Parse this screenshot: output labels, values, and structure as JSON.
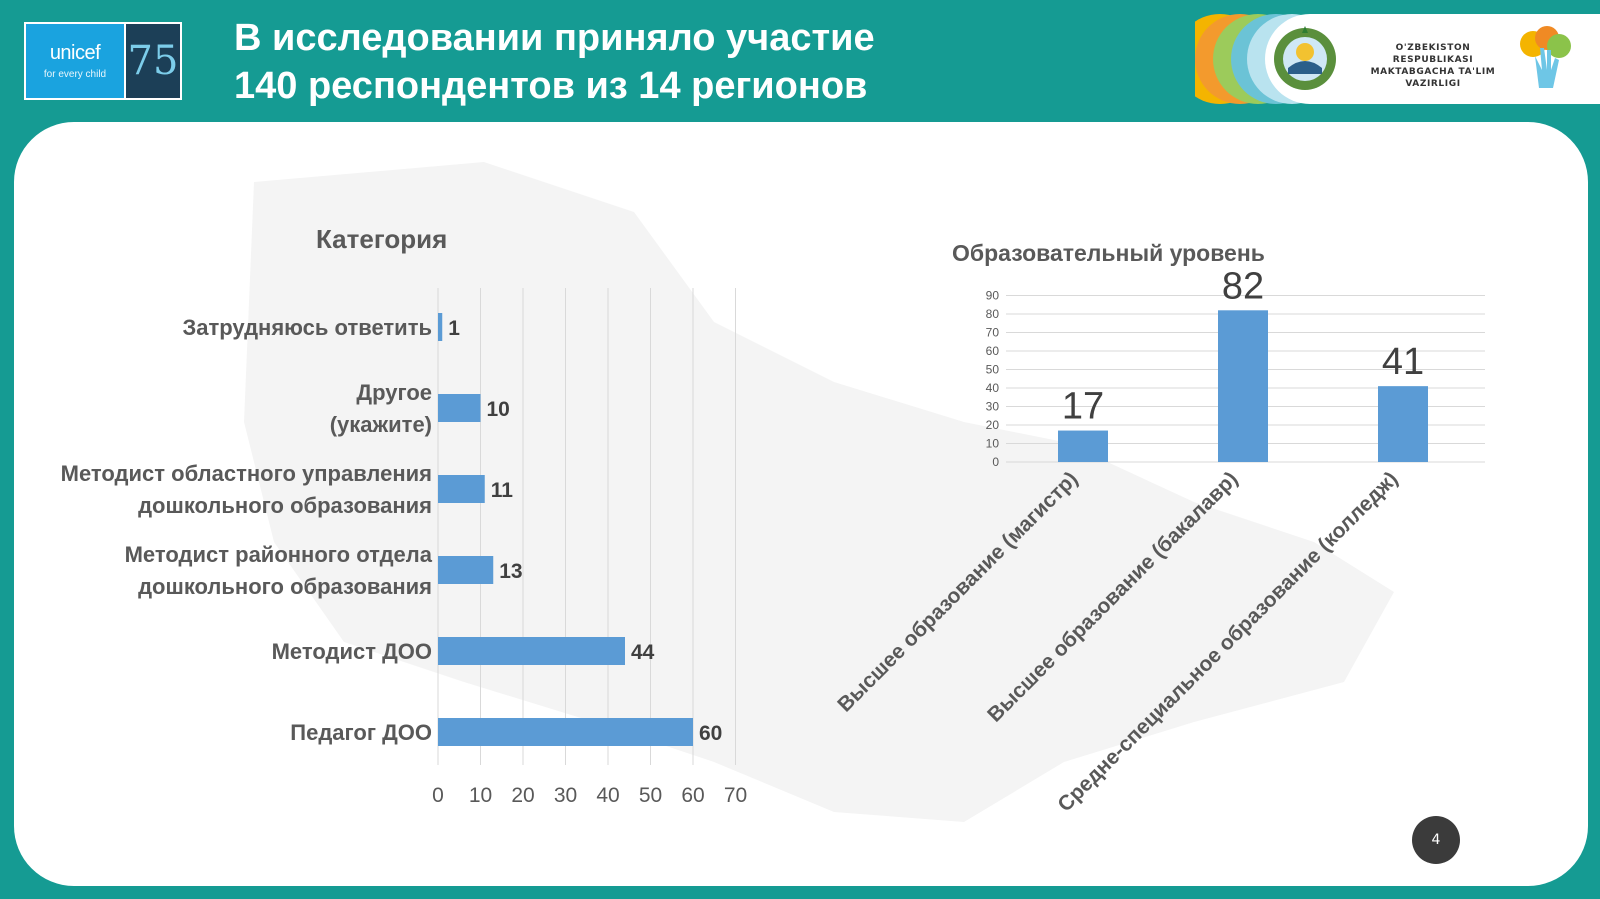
{
  "header": {
    "title_line1": "В исследовании приняло участие",
    "title_line2": "140 респондентов из 14 регионов",
    "unicef_name": "unicef",
    "unicef_tagline": "for every child",
    "unicef_anniversary": "75",
    "ministry_line1": "O'ZBEKISTON RESPUBLIKASI",
    "ministry_line2": "MAKTABGACHA TA'LIM",
    "ministry_line3": "VAZIRLIGI"
  },
  "colors": {
    "background": "#159b93",
    "bar": "#5b9bd5",
    "unicef_blue": "#1aa3df",
    "text_dark": "#595959"
  },
  "page_number": "4",
  "chart_data": [
    {
      "type": "bar",
      "orientation": "horizontal",
      "title": "Категория",
      "categories": [
        "Затрудняюсь ответить",
        "Другое (укажите)",
        "Методист областного управления дошкольного образования",
        "Методист районного отдела дошкольного образования",
        "Методист ДОО",
        "Педагог ДОО"
      ],
      "values": [
        1,
        10,
        11,
        13,
        44,
        60
      ],
      "xlim": [
        0,
        70
      ],
      "xticks": [
        0,
        10,
        20,
        30,
        40,
        50,
        60,
        70
      ],
      "grid": true,
      "data_labels": true
    },
    {
      "type": "bar",
      "orientation": "vertical",
      "title": "Образовательный уровень",
      "categories": [
        "Высшее образование (магистр)",
        "Высшее образование (бакалавр)",
        "Средне-специальное образование (колледж)"
      ],
      "values": [
        17,
        82,
        41
      ],
      "ylim": [
        0,
        90
      ],
      "yticks": [
        0,
        10,
        20,
        30,
        40,
        50,
        60,
        70,
        80,
        90
      ],
      "grid": true,
      "data_labels": true
    }
  ]
}
